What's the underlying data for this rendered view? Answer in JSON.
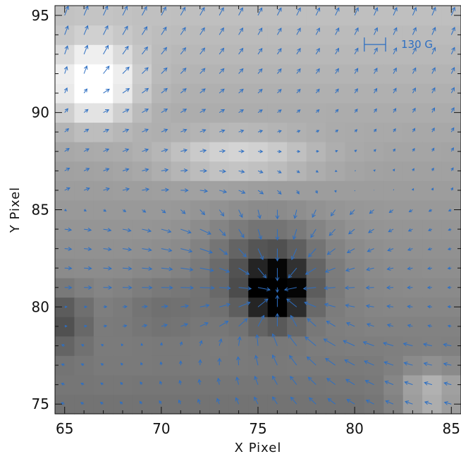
{
  "chart_data": {
    "type": "heatmap",
    "title": "",
    "xlabel": "X Pixel",
    "ylabel": "Y Pixel",
    "xlim": [
      64.5,
      85.5
    ],
    "ylim": [
      74.5,
      95.5
    ],
    "xticks": [
      65,
      70,
      75,
      80,
      85
    ],
    "yticks": [
      75,
      80,
      85,
      90,
      95
    ],
    "xtick_labels": [
      "65",
      "70",
      "75",
      "80",
      "85"
    ],
    "ytick_labels": [
      "75",
      "80",
      "85",
      "90",
      "95"
    ],
    "background": "grayscale intensity map (1 cell per pixel)",
    "intensity_features": [
      {
        "kind": "bright",
        "x": 66.5,
        "y": 91.5
      },
      {
        "kind": "bright",
        "x": 74,
        "y": 87.5
      },
      {
        "kind": "bright",
        "x": 84,
        "y": 75.5
      },
      {
        "kind": "dark",
        "x": 76,
        "y": 80.8
      },
      {
        "kind": "dark",
        "x": 65,
        "y": 79.5
      }
    ],
    "vector_field": {
      "color": "#2e6fc2",
      "scale_bar_label": "130 G"
    }
  }
}
